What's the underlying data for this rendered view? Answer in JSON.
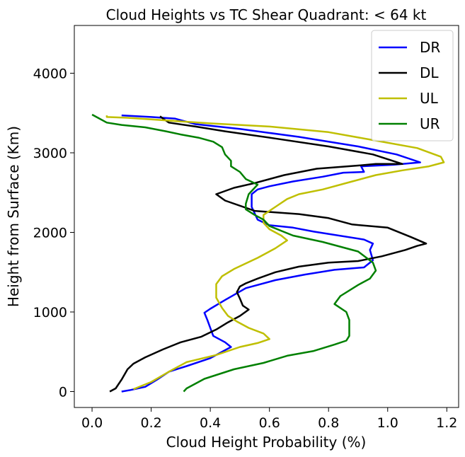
{
  "chart_data": {
    "type": "line",
    "title": "Cloud Heights vs TC Shear Quadrant: < 64 kt",
    "xlabel": "Cloud Height Probability (%)",
    "ylabel": "Height from Surface (Km)",
    "xlim": [
      -0.06,
      1.24
    ],
    "ylim": [
      -200,
      4600
    ],
    "xticks": [
      0.0,
      0.2,
      0.4,
      0.6,
      0.8,
      1.0,
      1.2
    ],
    "xtick_labels": [
      "0.0",
      "0.2",
      "0.4",
      "0.6",
      "0.8",
      "1.0",
      "1.2"
    ],
    "yticks": [
      0,
      1000,
      2000,
      3000,
      4000
    ],
    "ytick_labels": [
      "0",
      "1000",
      "2000",
      "3000",
      "4000"
    ],
    "grid": false,
    "legend_position": "top-right",
    "series": [
      {
        "name": "DR",
        "color": "#0000ff",
        "x": [
          0.1,
          0.13,
          0.18,
          0.22,
          0.26,
          0.32,
          0.4,
          0.45,
          0.47,
          0.45,
          0.41,
          0.4,
          0.39,
          0.38,
          0.4,
          0.45,
          0.52,
          0.62,
          0.72,
          0.82,
          0.92,
          0.95,
          0.94,
          0.95,
          0.92,
          0.75,
          0.68,
          0.6,
          0.56,
          0.54,
          0.54,
          0.56,
          0.6,
          0.68,
          0.78,
          0.85,
          0.92,
          0.91,
          1.02,
          1.11,
          1.03,
          0.9,
          0.7,
          0.5,
          0.35,
          0.28,
          0.2,
          0.1
        ],
        "y": [
          0,
          20,
          60,
          150,
          250,
          320,
          420,
          520,
          560,
          620,
          700,
          800,
          900,
          990,
          1040,
          1150,
          1300,
          1400,
          1470,
          1530,
          1560,
          1650,
          1780,
          1860,
          1910,
          2010,
          2060,
          2090,
          2160,
          2320,
          2480,
          2540,
          2580,
          2640,
          2700,
          2750,
          2760,
          2830,
          2850,
          2880,
          2980,
          3080,
          3200,
          3300,
          3360,
          3430,
          3450,
          3470
        ]
      },
      {
        "name": "DL",
        "color": "#000000",
        "x": [
          0.06,
          0.08,
          0.1,
          0.12,
          0.14,
          0.18,
          0.24,
          0.3,
          0.37,
          0.42,
          0.46,
          0.5,
          0.53,
          0.51,
          0.5,
          0.49,
          0.5,
          0.52,
          0.56,
          0.62,
          0.7,
          0.8,
          0.9,
          0.98,
          1.06,
          1.1,
          1.13,
          1.08,
          1.0,
          0.88,
          0.8,
          0.7,
          0.55,
          0.45,
          0.42,
          0.48,
          0.55,
          0.65,
          0.76,
          0.9,
          0.96,
          1.05,
          0.95,
          0.8,
          0.62,
          0.45,
          0.35,
          0.26,
          0.24,
          0.23
        ],
        "y": [
          0,
          40,
          150,
          280,
          350,
          430,
          530,
          620,
          690,
          780,
          870,
          950,
          1030,
          1080,
          1170,
          1250,
          1320,
          1360,
          1420,
          1500,
          1570,
          1620,
          1640,
          1700,
          1780,
          1830,
          1860,
          1940,
          2060,
          2100,
          2180,
          2230,
          2270,
          2400,
          2480,
          2560,
          2620,
          2720,
          2800,
          2840,
          2860,
          2860,
          2980,
          3080,
          3180,
          3270,
          3330,
          3380,
          3430,
          3460
        ]
      },
      {
        "name": "UL",
        "color": "#bfbf00",
        "x": [
          0.14,
          0.2,
          0.26,
          0.32,
          0.42,
          0.5,
          0.56,
          0.6,
          0.58,
          0.53,
          0.49,
          0.46,
          0.44,
          0.42,
          0.42,
          0.44,
          0.48,
          0.56,
          0.62,
          0.66,
          0.64,
          0.6,
          0.58,
          0.58,
          0.62,
          0.66,
          0.7,
          0.78,
          0.88,
          0.96,
          1.05,
          1.14,
          1.19,
          1.18,
          1.1,
          0.95,
          0.8,
          0.6,
          0.4,
          0.24,
          0.12,
          0.05,
          0.05
        ],
        "y": [
          30,
          120,
          250,
          370,
          460,
          560,
          610,
          660,
          730,
          800,
          880,
          950,
          1050,
          1180,
          1350,
          1450,
          1540,
          1680,
          1800,
          1900,
          1960,
          2040,
          2120,
          2220,
          2320,
          2420,
          2480,
          2540,
          2640,
          2720,
          2780,
          2830,
          2880,
          2950,
          3060,
          3160,
          3260,
          3330,
          3370,
          3410,
          3440,
          3450,
          3470
        ]
      },
      {
        "name": "UR",
        "color": "#008000",
        "x": [
          0.31,
          0.32,
          0.38,
          0.48,
          0.58,
          0.66,
          0.75,
          0.82,
          0.86,
          0.87,
          0.87,
          0.87,
          0.86,
          0.82,
          0.84,
          0.9,
          0.94,
          0.96,
          0.95,
          0.9,
          0.78,
          0.68,
          0.6,
          0.58,
          0.55,
          0.52,
          0.52,
          0.53,
          0.56,
          0.52,
          0.5,
          0.47,
          0.47,
          0.45,
          0.44,
          0.41,
          0.36,
          0.3,
          0.25,
          0.18,
          0.1,
          0.05,
          0.02,
          0.0
        ],
        "y": [
          0,
          40,
          160,
          280,
          360,
          450,
          510,
          590,
          640,
          700,
          800,
          900,
          1000,
          1100,
          1200,
          1340,
          1420,
          1520,
          1620,
          1760,
          1880,
          1960,
          2080,
          2160,
          2220,
          2290,
          2360,
          2480,
          2600,
          2670,
          2760,
          2830,
          2900,
          2980,
          3070,
          3140,
          3190,
          3230,
          3270,
          3320,
          3350,
          3380,
          3440,
          3480
        ]
      }
    ]
  }
}
